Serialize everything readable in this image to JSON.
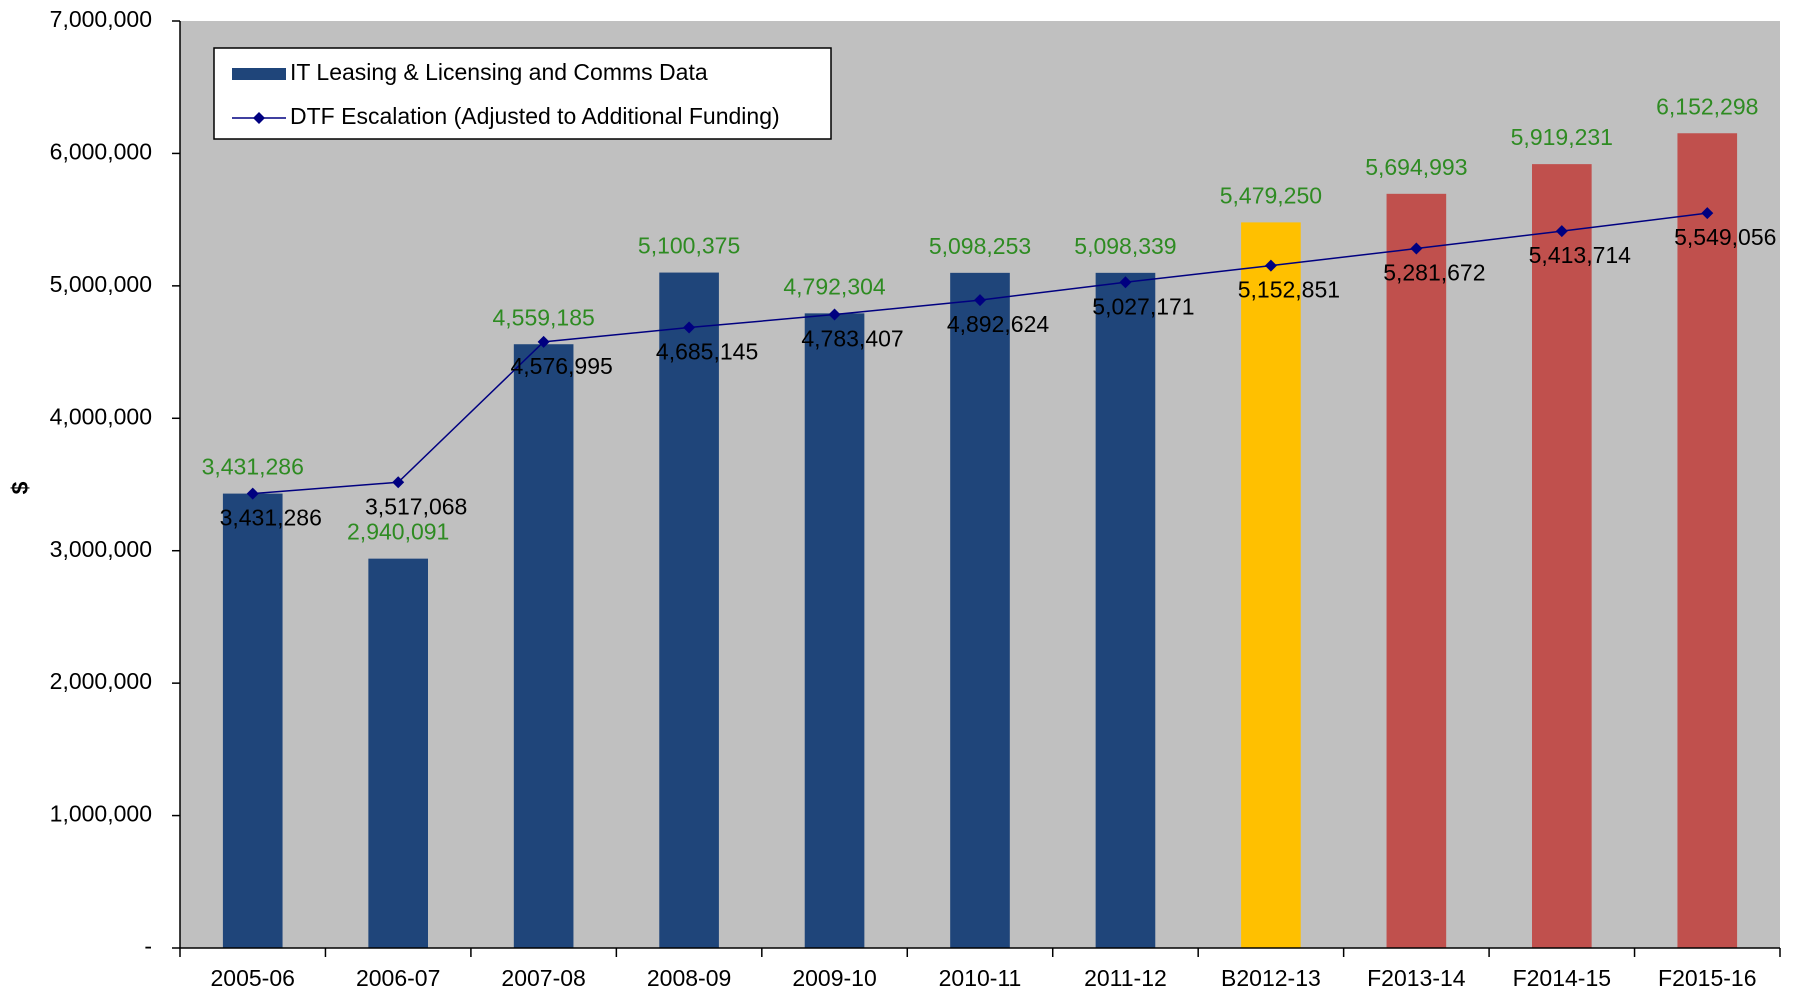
{
  "chart_data": {
    "type": "bar",
    "y_label": "$",
    "categories": [
      "2005-06",
      "2006-07",
      "2007-08",
      "2008-09",
      "2009-10",
      "2010-11",
      "2011-12",
      "B2012-13",
      "F2013-14",
      "F2014-15",
      "F2015-16"
    ],
    "series": [
      {
        "name": "IT Leasing & Licensing and Comms Data",
        "type": "bar",
        "color": "#1f457a",
        "colors": [
          "#1f457a",
          "#1f457a",
          "#1f457a",
          "#1f457a",
          "#1f457a",
          "#1f457a",
          "#1f457a",
          "#ffc000",
          "#c0504d",
          "#c0504d",
          "#c0504d"
        ],
        "label_color": "#2e8b22",
        "values": [
          3431286,
          2940091,
          4559185,
          5100375,
          4792304,
          5098253,
          5098339,
          5479250,
          5694993,
          5919231,
          6152298
        ],
        "value_labels": [
          "3,431,286",
          "2,940,091",
          "4,559,185",
          "5,100,375",
          "4,792,304",
          "5,098,253",
          "5,098,339",
          "5,479,250",
          "5,694,993",
          "5,919,231",
          "6,152,298"
        ]
      },
      {
        "name": "DTF Escalation (Adjusted to Additional Funding)",
        "type": "line",
        "color": "#000080",
        "label_color": "#000000",
        "values": [
          3431286,
          3517068,
          4576995,
          4685145,
          4783407,
          4892624,
          5027171,
          5152851,
          5281672,
          5413714,
          5549056
        ],
        "value_labels": [
          "3,431,286",
          "3,517,068",
          "4,576,995",
          "4,685,145",
          "4,783,407",
          "4,892,624",
          "5,027,171",
          "5,152,851",
          "5,281,672",
          "5,413,714",
          "5,549,056"
        ]
      }
    ],
    "ylim": [
      0,
      7000000
    ],
    "yticks": [
      {
        "value": 0,
        "label": "-"
      },
      {
        "value": 1000000,
        "label": "1,000,000"
      },
      {
        "value": 2000000,
        "label": "2,000,000"
      },
      {
        "value": 3000000,
        "label": "3,000,000"
      },
      {
        "value": 4000000,
        "label": "4,000,000"
      },
      {
        "value": 5000000,
        "label": "5,000,000"
      },
      {
        "value": 6000000,
        "label": "6,000,000"
      },
      {
        "value": 7000000,
        "label": "7,000,000"
      }
    ],
    "plot_background": "#c0c0c0",
    "legend": "upper left"
  }
}
